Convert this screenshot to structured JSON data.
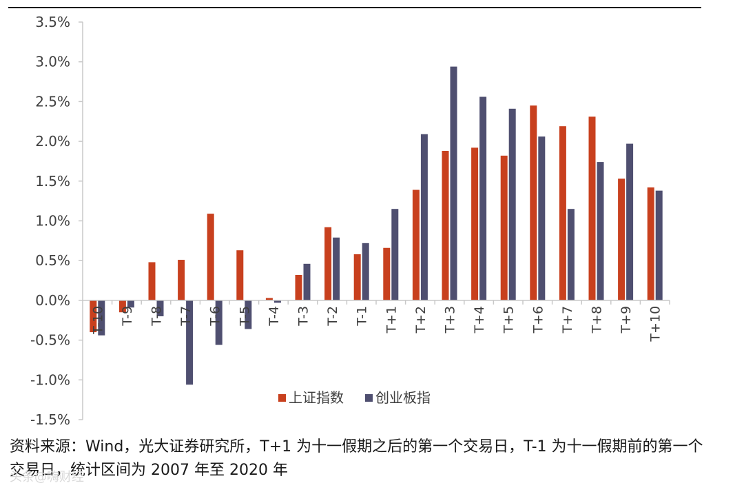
{
  "chart_data": {
    "type": "bar",
    "title": "",
    "xlabel": "",
    "ylabel": "",
    "ylim": [
      -1.5,
      3.5
    ],
    "ytick_step": 0.5,
    "ytick_labels": [
      "-1.5%",
      "-1.0%",
      "-0.5%",
      "0.0%",
      "0.5%",
      "1.0%",
      "1.5%",
      "2.0%",
      "2.5%",
      "3.0%",
      "3.5%"
    ],
    "categories": [
      "T-10",
      "T-9",
      "T-8",
      "T-7",
      "T-6",
      "T-5",
      "T-4",
      "T-3",
      "T-2",
      "T-1",
      "T+1",
      "T+2",
      "T+3",
      "T+4",
      "T+5",
      "T+6",
      "T+7",
      "T+8",
      "T+9",
      "T+10"
    ],
    "series": [
      {
        "name": "上证指数",
        "color": "#C8401E",
        "values": [
          -0.4,
          -0.15,
          0.48,
          0.51,
          1.09,
          0.63,
          0.03,
          0.32,
          0.92,
          0.58,
          0.66,
          1.39,
          1.88,
          1.92,
          1.82,
          2.45,
          2.19,
          2.31,
          1.53,
          1.42
        ]
      },
      {
        "name": "创业板指",
        "color": "#4F4F70",
        "values": [
          -0.44,
          -0.09,
          -0.2,
          -1.06,
          -0.56,
          -0.36,
          -0.03,
          0.46,
          0.79,
          0.72,
          1.15,
          2.09,
          2.94,
          2.56,
          2.41,
          2.06,
          1.15,
          1.74,
          1.97,
          1.38
        ]
      }
    ],
    "legend_position": "bottom-center",
    "grid": false
  },
  "source_note": "资料来源：Wind，光大证券研究所，T+1 为十一假期之后的第一个交易日，T-1 为十一假期前的第一个交易日，统计区间为 2007 年至 2020 年",
  "watermark": "头条@嗨财经"
}
